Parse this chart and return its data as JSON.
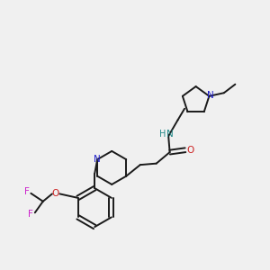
{
  "bg_color": "#f0f0f0",
  "bond_color": "#1a1a1a",
  "N_color": "#2222cc",
  "O_color": "#cc2222",
  "F_color": "#cc22cc",
  "NH_color": "#228888",
  "line_width": 1.4,
  "figsize": [
    3.0,
    3.0
  ],
  "dpi": 100,
  "xlim": [
    0,
    10
  ],
  "ylim": [
    0,
    10
  ]
}
